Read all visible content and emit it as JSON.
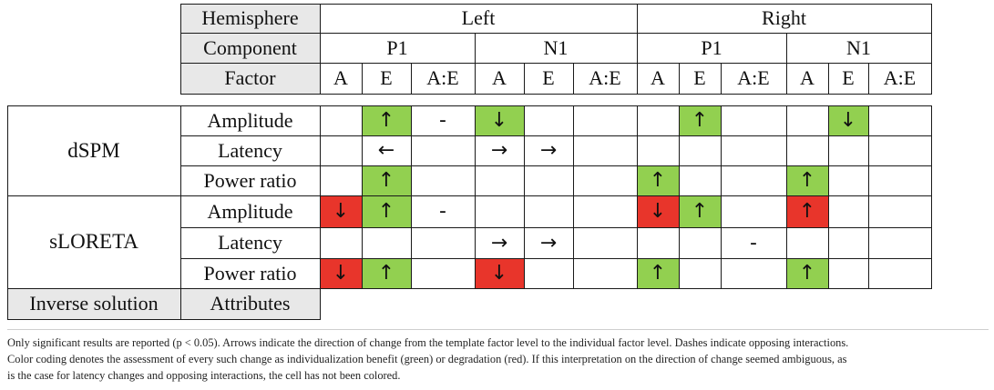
{
  "header": {
    "hemisphere_label": "Hemisphere",
    "component_label": "Component",
    "factor_label": "Factor",
    "hemispheres": [
      "Left",
      "Right"
    ],
    "components": [
      "P1",
      "N1",
      "P1",
      "N1"
    ],
    "factors": [
      "A",
      "E",
      "A:E",
      "A",
      "E",
      "A:E",
      "A",
      "E",
      "A:E",
      "A",
      "E",
      "A:E"
    ]
  },
  "footer": {
    "inverse_solution_label": "Inverse solution",
    "attributes_label": "Attributes"
  },
  "methods": [
    "dSPM",
    "sLORETA"
  ],
  "rows": [
    {
      "attribute": "Amplitude",
      "cells": [
        "",
        "↑",
        "-",
        "↓",
        "",
        "",
        "",
        "↑",
        "",
        "",
        "↓",
        ""
      ],
      "colors": [
        "",
        "g",
        "",
        "g",
        "",
        "",
        "",
        "g",
        "",
        "",
        "g",
        ""
      ]
    },
    {
      "attribute": "Latency",
      "cells": [
        "",
        "←",
        "",
        "→",
        "→",
        "",
        "",
        "",
        "",
        "",
        "",
        ""
      ],
      "colors": [
        "",
        "",
        "",
        "",
        "",
        "",
        "",
        "",
        "",
        "",
        "",
        ""
      ]
    },
    {
      "attribute": "Power ratio",
      "cells": [
        "",
        "↑",
        "",
        "",
        "",
        "",
        "↑",
        "",
        "",
        "↑",
        "",
        ""
      ],
      "colors": [
        "",
        "g",
        "",
        "",
        "",
        "",
        "g",
        "",
        "",
        "g",
        "",
        ""
      ]
    },
    {
      "attribute": "Amplitude",
      "cells": [
        "↓",
        "↑",
        "-",
        "",
        "",
        "",
        "↓",
        "↑",
        "",
        "↑",
        "",
        ""
      ],
      "colors": [
        "r",
        "g",
        "",
        "",
        "",
        "",
        "r",
        "g",
        "",
        "r",
        "",
        ""
      ]
    },
    {
      "attribute": "Latency",
      "cells": [
        "",
        "",
        "",
        "→",
        "→",
        "",
        "",
        "",
        "-",
        "",
        "",
        ""
      ],
      "colors": [
        "",
        "",
        "",
        "",
        "",
        "",
        "",
        "",
        "",
        "",
        "",
        ""
      ]
    },
    {
      "attribute": "Power ratio",
      "cells": [
        "↓",
        "↑",
        "",
        "↓",
        "",
        "",
        "↑",
        "",
        "",
        "↑",
        "",
        ""
      ],
      "colors": [
        "r",
        "g",
        "",
        "r",
        "",
        "",
        "g",
        "",
        "",
        "g",
        "",
        ""
      ]
    }
  ],
  "colors": {
    "green": "#92d050",
    "red": "#e8352b",
    "header_gray": "#e8e8e8"
  },
  "caption": {
    "line1": "Only significant results are reported (p < 0.05). Arrows indicate the direction of change from the template factor level to the individual factor level. Dashes indicate opposing interactions.",
    "line2": "Color coding denotes the assessment of every such change as individualization benefit (green) or degradation (red). If this interpretation on the direction of change seemed ambiguous, as",
    "line3": "is the case for latency changes and opposing interactions, the cell has not been colored."
  }
}
